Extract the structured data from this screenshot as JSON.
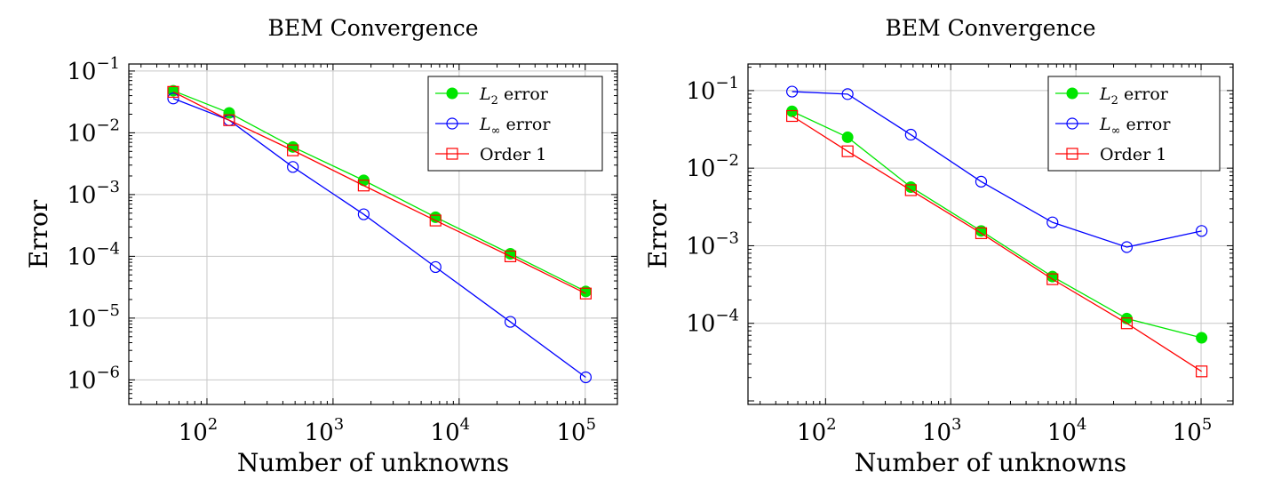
{
  "chart_data": [
    {
      "type": "line",
      "title": "BEM Convergence",
      "xlabel": "Number of unknowns",
      "ylabel": "Error",
      "xscale": "log",
      "yscale": "log",
      "xlim": [
        24,
        180000
      ],
      "ylim": [
        4e-07,
        0.13
      ],
      "grid": true,
      "legend_position": "top-right",
      "x": [
        54,
        150,
        480,
        1750,
        6500,
        25500,
        101000
      ],
      "x_ticks": [
        {
          "value": 100,
          "base": "10",
          "exp": "2"
        },
        {
          "value": 1000,
          "base": "10",
          "exp": "3"
        },
        {
          "value": 10000,
          "base": "10",
          "exp": "4"
        },
        {
          "value": 100000,
          "base": "10",
          "exp": "5"
        }
      ],
      "y_ticks": [
        {
          "value": 0.1,
          "base": "10",
          "exp": "−1"
        },
        {
          "value": 0.01,
          "base": "10",
          "exp": "−2"
        },
        {
          "value": 0.001,
          "base": "10",
          "exp": "−3"
        },
        {
          "value": 0.0001,
          "base": "10",
          "exp": "−4"
        },
        {
          "value": 1e-05,
          "base": "10",
          "exp": "−5"
        },
        {
          "value": 1e-06,
          "base": "10",
          "exp": "−6"
        }
      ],
      "series": [
        {
          "name": "L2 error",
          "label_main": "L",
          "label_sub": "2",
          "label_rest": " error",
          "color": "#00e600",
          "marker": "filled-circle",
          "values": [
            0.048,
            0.021,
            0.0059,
            0.0017,
            0.00043,
            0.00011,
            2.7e-05
          ]
        },
        {
          "name": "L∞ error",
          "label_main": "L",
          "label_sub": "∞",
          "label_rest": " error",
          "color": "#0000ff",
          "marker": "open-circle",
          "values": [
            0.036,
            0.016,
            0.0028,
            0.00048,
            6.7e-05,
            8.7e-06,
            1.1e-06
          ]
        },
        {
          "name": "Order 1",
          "label_main": "Order 1",
          "label_sub": "",
          "label_rest": "",
          "color": "#ff0000",
          "marker": "open-square",
          "values": [
            0.046,
            0.016,
            0.0052,
            0.0014,
            0.00038,
            0.0001,
            2.5e-05
          ]
        }
      ]
    },
    {
      "type": "line",
      "title": "BEM Convergence",
      "xlabel": "Number of unknowns",
      "ylabel": "Error",
      "xscale": "log",
      "yscale": "log",
      "xlim": [
        24,
        180000
      ],
      "ylim": [
        9e-06,
        0.22
      ],
      "grid": true,
      "legend_position": "top-right",
      "x": [
        54,
        150,
        480,
        1750,
        6500,
        25500,
        101000
      ],
      "x_ticks": [
        {
          "value": 100,
          "base": "10",
          "exp": "2"
        },
        {
          "value": 1000,
          "base": "10",
          "exp": "3"
        },
        {
          "value": 10000,
          "base": "10",
          "exp": "4"
        },
        {
          "value": 100000,
          "base": "10",
          "exp": "5"
        }
      ],
      "y_ticks": [
        {
          "value": 0.1,
          "base": "10",
          "exp": "−1"
        },
        {
          "value": 0.01,
          "base": "10",
          "exp": "−2"
        },
        {
          "value": 0.001,
          "base": "10",
          "exp": "−3"
        },
        {
          "value": 0.0001,
          "base": "10",
          "exp": "−4"
        }
      ],
      "series": [
        {
          "name": "L2 error",
          "label_main": "L",
          "label_sub": "2",
          "label_rest": " error",
          "color": "#00e600",
          "marker": "filled-circle",
          "values": [
            0.054,
            0.025,
            0.0057,
            0.00155,
            0.0004,
            0.000115,
            6.5e-05
          ]
        },
        {
          "name": "L∞ error",
          "label_main": "L",
          "label_sub": "∞",
          "label_rest": " error",
          "color": "#0000ff",
          "marker": "open-circle",
          "values": [
            0.097,
            0.09,
            0.027,
            0.0067,
            0.002,
            0.00096,
            0.00155
          ]
        },
        {
          "name": "Order 1",
          "label_main": "Order 1",
          "label_sub": "",
          "label_rest": "",
          "color": "#ff0000",
          "marker": "open-square",
          "values": [
            0.047,
            0.0165,
            0.0052,
            0.00145,
            0.00037,
            0.0001,
            2.4e-05
          ]
        }
      ]
    }
  ]
}
